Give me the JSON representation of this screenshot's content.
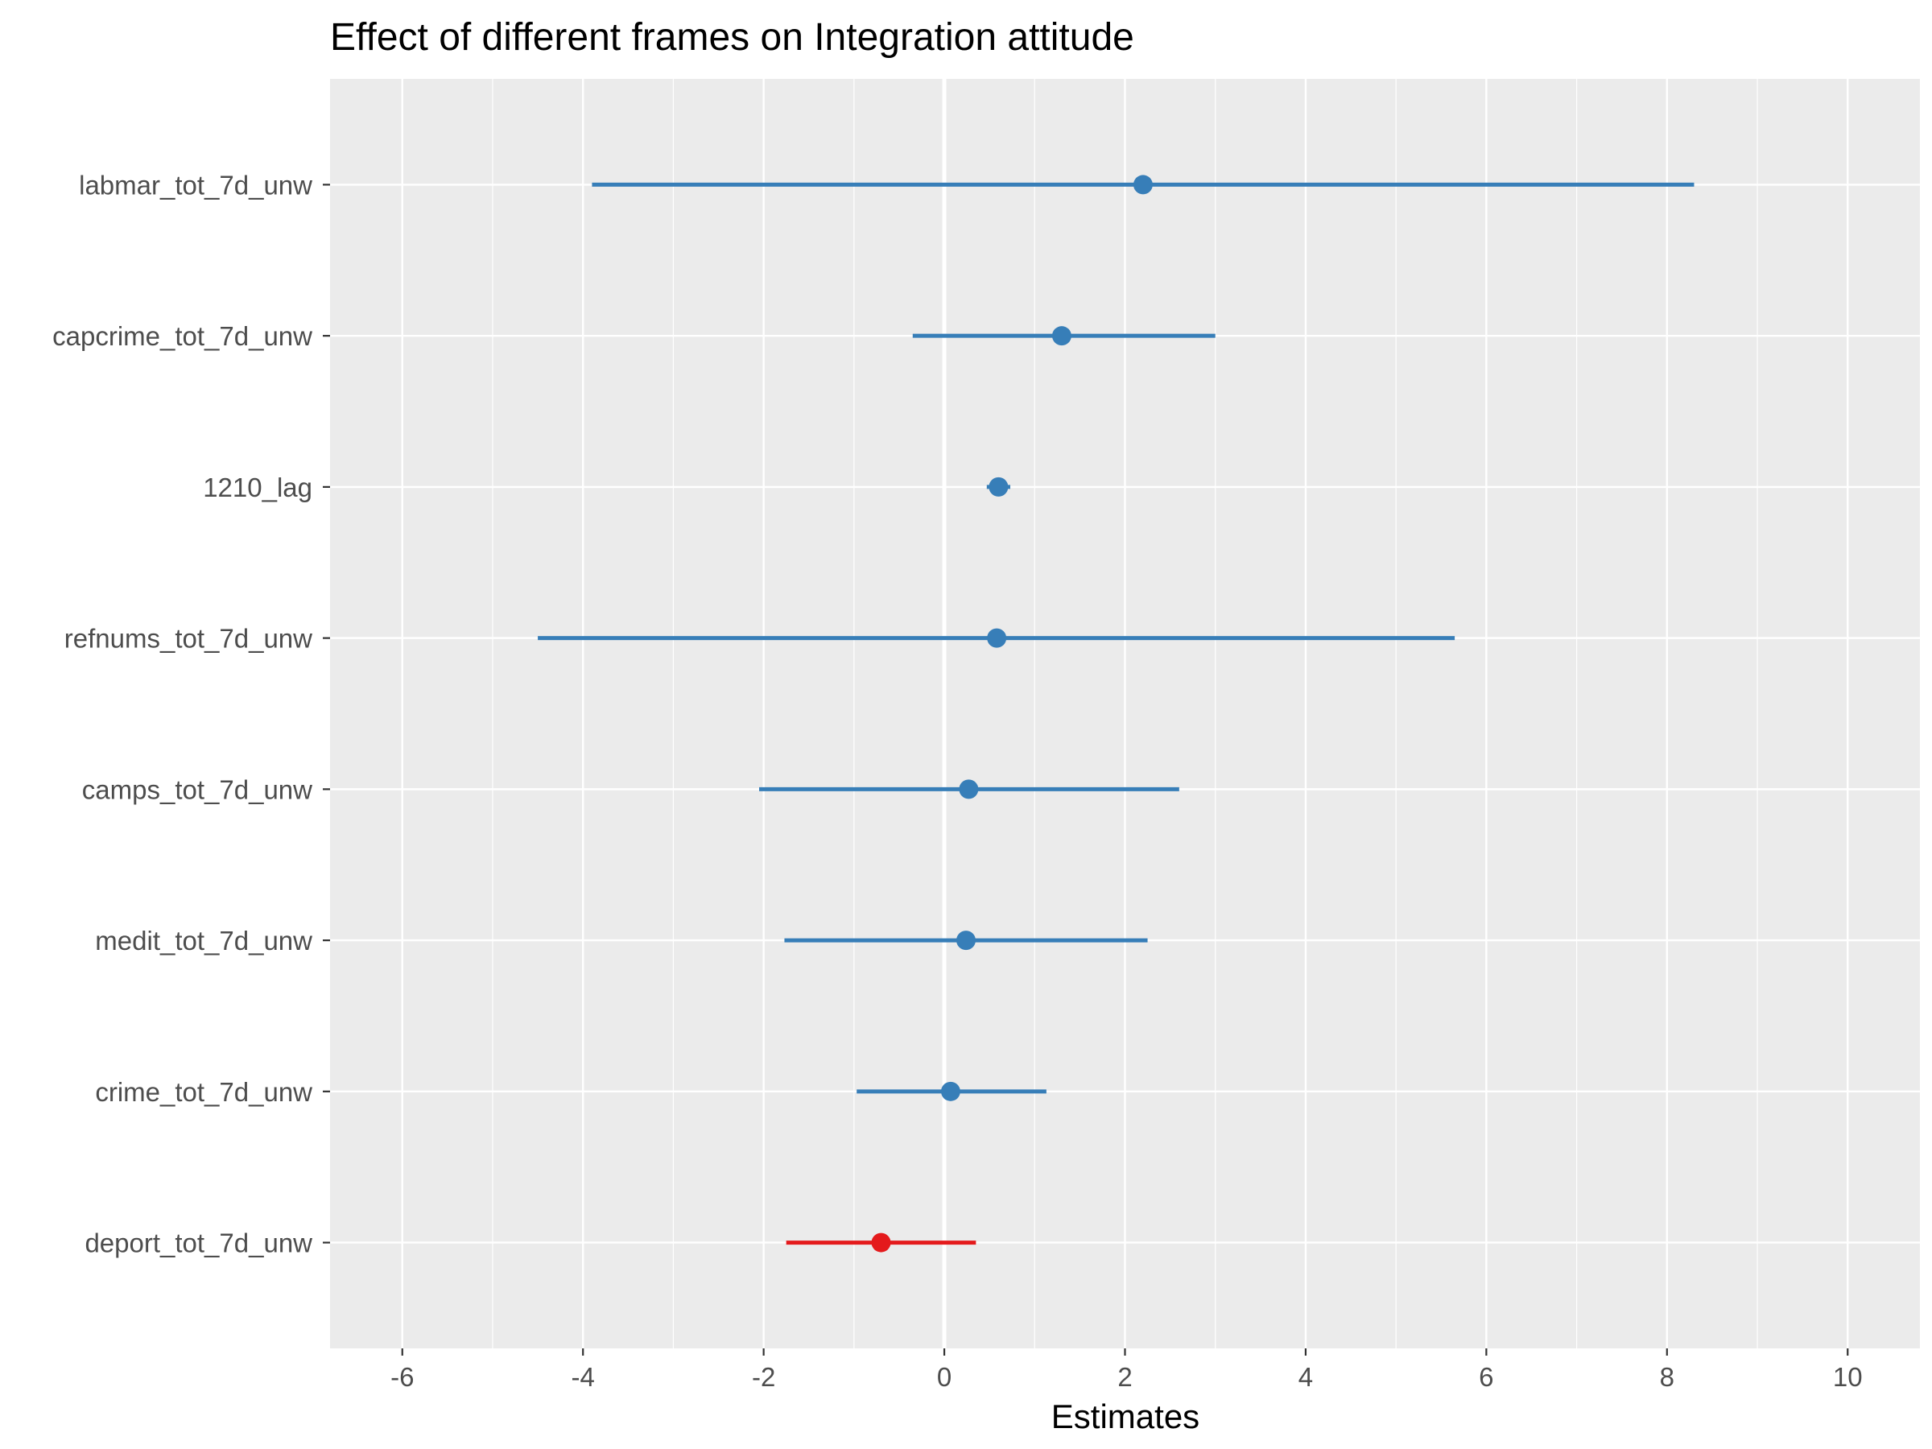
{
  "chart_data": {
    "type": "forest",
    "title": "Effect of different frames on Integration attitude",
    "xlabel": "Estimates",
    "ylabel": "",
    "xlim": [
      -6.8,
      10.8
    ],
    "x_ticks": [
      -6,
      -4,
      -2,
      0,
      2,
      4,
      6,
      8,
      10
    ],
    "x_tick_labels": [
      "-6",
      "-4",
      "-2",
      "0",
      "2",
      "4",
      "6",
      "8",
      "10"
    ],
    "zero_line": 0,
    "grid": true,
    "colors": {
      "positive": "#377eb8",
      "negative": "#e41a1c",
      "panel": "#ebebeb",
      "grid": "#ffffff"
    },
    "terms": [
      {
        "label": "labmar_tot_7d_unw",
        "estimate": 2.2,
        "low": -3.9,
        "high": 8.3,
        "sign": "positive"
      },
      {
        "label": "capcrime_tot_7d_unw",
        "estimate": 1.3,
        "low": -0.35,
        "high": 3.0,
        "sign": "positive"
      },
      {
        "label": "1210_lag",
        "estimate": 0.6,
        "low": 0.47,
        "high": 0.73,
        "sign": "positive"
      },
      {
        "label": "refnums_tot_7d_unw",
        "estimate": 0.58,
        "low": -4.5,
        "high": 5.65,
        "sign": "positive"
      },
      {
        "label": "camps_tot_7d_unw",
        "estimate": 0.27,
        "low": -2.05,
        "high": 2.6,
        "sign": "positive"
      },
      {
        "label": "medit_tot_7d_unw",
        "estimate": 0.24,
        "low": -1.77,
        "high": 2.25,
        "sign": "positive"
      },
      {
        "label": "crime_tot_7d_unw",
        "estimate": 0.07,
        "low": -0.97,
        "high": 1.13,
        "sign": "positive"
      },
      {
        "label": "deport_tot_7d_unw",
        "estimate": -0.7,
        "low": -1.75,
        "high": 0.35,
        "sign": "negative"
      }
    ]
  }
}
